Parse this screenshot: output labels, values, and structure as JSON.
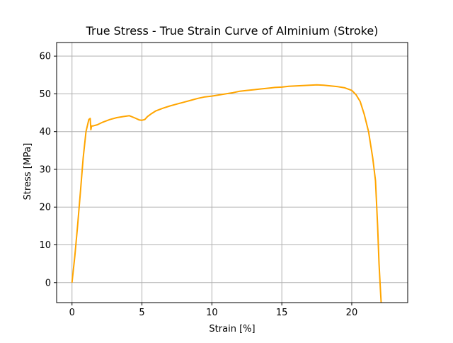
{
  "chart_data": {
    "type": "line",
    "title": "True Stress - True Strain Curve of Alminium (Stroke)",
    "xlabel": "Strain [%]",
    "ylabel": "Stress [MPa]",
    "xlim": [
      -1.1,
      24.0
    ],
    "ylim": [
      -5.3,
      63.6
    ],
    "xticks": [
      0,
      5,
      10,
      15,
      20
    ],
    "yticks": [
      0,
      10,
      20,
      30,
      40,
      50,
      60
    ],
    "grid": true,
    "series": [
      {
        "color": "#FFA500",
        "x": [
          0.0,
          0.2,
          0.4,
          0.6,
          0.8,
          1.0,
          1.2,
          1.3,
          1.35,
          1.4,
          1.5,
          1.8,
          2.2,
          2.7,
          3.2,
          3.7,
          4.1,
          4.5,
          4.8,
          5.0,
          5.2,
          5.4,
          5.7,
          6.0,
          6.5,
          7.0,
          7.5,
          8.0,
          8.5,
          9.0,
          9.5,
          10.0,
          10.5,
          11.0,
          11.5,
          12.0,
          12.5,
          13.0,
          13.5,
          14.0,
          14.5,
          15.0,
          15.5,
          16.0,
          16.5,
          17.0,
          17.5,
          18.0,
          18.5,
          19.0,
          19.5,
          20.0,
          20.3,
          20.6,
          20.9,
          21.2,
          21.5,
          21.7,
          21.85,
          21.95,
          22.05,
          22.1
        ],
        "y": [
          0.0,
          7.0,
          15.0,
          24.0,
          33.0,
          40.0,
          43.2,
          43.5,
          40.5,
          41.5,
          41.5,
          41.8,
          42.5,
          43.2,
          43.7,
          44.0,
          44.2,
          43.6,
          43.1,
          43.0,
          43.2,
          44.0,
          44.8,
          45.5,
          46.2,
          46.8,
          47.3,
          47.8,
          48.3,
          48.8,
          49.2,
          49.4,
          49.7,
          50.0,
          50.3,
          50.7,
          50.9,
          51.1,
          51.3,
          51.5,
          51.7,
          51.8,
          52.0,
          52.1,
          52.2,
          52.3,
          52.4,
          52.3,
          52.1,
          51.9,
          51.6,
          50.9,
          49.8,
          48.0,
          44.5,
          40.0,
          33.0,
          27.0,
          15.0,
          5.0,
          -2.0,
          -5.3
        ]
      }
    ]
  }
}
